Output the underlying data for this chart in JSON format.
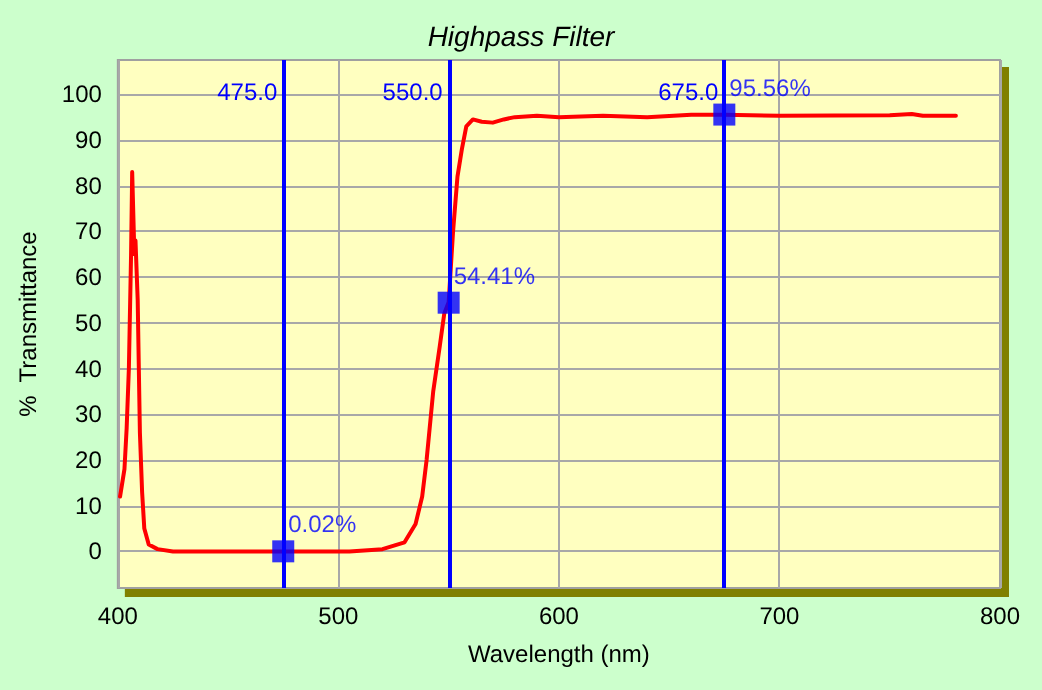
{
  "chart_data": {
    "type": "line",
    "title": "Highpass Filter",
    "xlabel": "Wavelength (nm)",
    "ylabel": "%  Transmittance",
    "xlim": [
      400,
      800
    ],
    "xticks": [
      400,
      500,
      600,
      700,
      800
    ],
    "ylim": [
      -8,
      107.5
    ],
    "yticks": [
      0,
      10,
      20,
      30,
      40,
      50,
      60,
      70,
      80,
      90,
      100
    ],
    "grid": true,
    "line_style": "solid",
    "series": [
      {
        "color": "#ff0000",
        "marker": "none",
        "x": [
          401,
          403,
          404,
          405,
          406,
          406.5,
          407.5,
          408,
          409,
          410,
          411,
          412,
          414,
          418,
          425,
          475,
          505,
          520,
          530,
          535,
          538,
          540,
          543,
          546,
          548,
          550,
          552,
          554,
          556,
          558,
          561,
          565,
          570,
          575,
          580,
          590,
          600,
          620,
          640,
          660,
          675,
          700,
          750,
          760,
          765,
          780
        ],
        "values": [
          12,
          18,
          27,
          40,
          65,
          83,
          65,
          68,
          55,
          26,
          13,
          5,
          1.5,
          0.5,
          0,
          0,
          0,
          0.5,
          2,
          6,
          12,
          20,
          35,
          45,
          52,
          54.5,
          70,
          82,
          88,
          93,
          94.5,
          94,
          93.8,
          94.5,
          95,
          95.3,
          95,
          95.3,
          95,
          95.5,
          95.5,
          95.3,
          95.4,
          95.7,
          95.3,
          95.3
        ]
      },
      {
        "type": "scatter",
        "color": "#0000ff",
        "marker": "square",
        "x": [
          475,
          550,
          675
        ],
        "values": [
          0.02,
          54.41,
          95.56
        ],
        "value_labels": [
          "0.02%",
          "54.41%",
          "95.56%"
        ]
      }
    ],
    "ref_lines": [
      {
        "axis": "x",
        "value": 475,
        "label": "475.0",
        "color": "#0000ff"
      },
      {
        "axis": "x",
        "value": 550,
        "label": "550.0",
        "color": "#0000ff"
      },
      {
        "axis": "x",
        "value": 675,
        "label": "675.0",
        "color": "#0000ff"
      }
    ]
  }
}
